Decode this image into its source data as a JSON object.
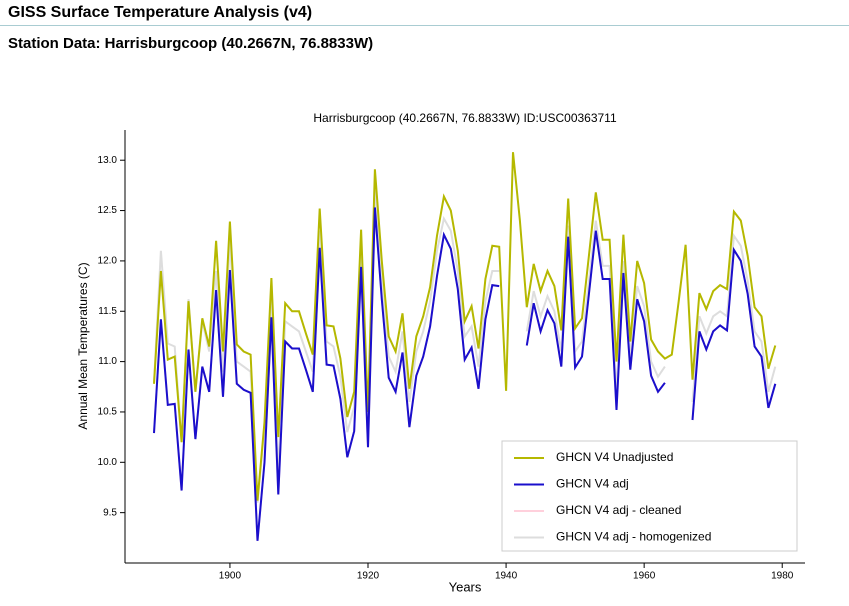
{
  "header": {
    "title": "GISS Surface Temperature Analysis (v4)",
    "subtitle": "Station Data: Harrisburgcoop (40.2667N, 76.8833W)"
  },
  "chart_data": {
    "type": "line",
    "title": "Harrisburgcoop (40.2667N, 76.8833W) ID:USC00363711",
    "xlabel": "Years",
    "ylabel": "Annual Mean Temperatures (C)",
    "xlim": [
      1884.8,
      1983.3
    ],
    "xticks": [
      1900,
      1920,
      1940,
      1960,
      1980
    ],
    "ylim": [
      9.0,
      13.3
    ],
    "yticks": [
      {
        "value": 9.5,
        "label": "9.5"
      },
      {
        "value": 10,
        "label": "10.0"
      },
      10.5,
      {
        "value": 11,
        "label": "11.0"
      },
      11.5,
      {
        "value": 12,
        "label": "12.0"
      },
      12.5,
      {
        "value": 13,
        "label": "13.0"
      }
    ],
    "legend": "lower right",
    "x": [
      1889,
      1890,
      1891,
      1892,
      1893,
      1894,
      1895,
      1896,
      1897,
      1898,
      1899,
      1900,
      1901,
      1902,
      1903,
      1904,
      1905,
      1906,
      1907,
      1908,
      1909,
      1910,
      1911,
      1912,
      1913,
      1914,
      1915,
      1916,
      1917,
      1918,
      1919,
      1920,
      1921,
      1922,
      1923,
      1924,
      1925,
      1926,
      1927,
      1928,
      1929,
      1930,
      1931,
      1932,
      1933,
      1934,
      1935,
      1936,
      1937,
      1938,
      1939,
      1940,
      1941,
      1942,
      1943,
      1944,
      1945,
      1946,
      1947,
      1948,
      1949,
      1950,
      1951,
      1952,
      1953,
      1954,
      1955,
      1956,
      1957,
      1958,
      1959,
      1960,
      1961,
      1962,
      1963,
      1964,
      1965,
      1966,
      1967,
      1968,
      1969,
      1970,
      1971,
      1972,
      1973,
      1974,
      1975,
      1976,
      1977,
      1978,
      1979
    ],
    "series": [
      {
        "name": "GHCN V4 Unadjusted",
        "color": "#b5b800",
        "values": [
          10.78,
          11.9,
          11.02,
          11.05,
          10.2,
          11.6,
          10.7,
          11.43,
          11.15,
          12.2,
          11.1,
          12.39,
          11.17,
          11.1,
          11.07,
          9.62,
          10.4,
          11.83,
          10.25,
          11.58,
          11.5,
          11.5,
          11.28,
          11.07,
          12.52,
          11.36,
          11.35,
          11.03,
          10.45,
          10.7,
          12.31,
          10.5,
          12.91,
          12.0,
          11.25,
          11.1,
          11.48,
          10.73,
          11.25,
          11.45,
          11.74,
          12.25,
          12.64,
          12.5,
          12.1,
          11.4,
          11.55,
          11.13,
          11.82,
          12.15,
          12.14,
          10.71,
          13.08,
          12.4,
          11.54,
          11.97,
          11.7,
          11.9,
          11.75,
          11.31,
          12.62,
          11.33,
          11.43,
          12.05,
          12.68,
          12.21,
          12.21,
          11.0,
          12.26,
          11.2,
          12.0,
          11.78,
          11.22,
          11.1,
          11.03,
          11.07,
          11.6,
          12.16,
          10.82,
          11.68,
          11.52,
          11.7,
          11.76,
          11.72,
          12.49,
          12.4,
          12.05,
          11.54,
          11.45,
          10.93,
          11.16
        ]
      },
      {
        "name": "GHCN V4 adj",
        "color": "#1a0fcc",
        "values": [
          10.29,
          11.42,
          10.57,
          10.58,
          9.72,
          11.12,
          10.23,
          10.95,
          10.7,
          11.71,
          10.65,
          11.91,
          10.78,
          10.72,
          10.69,
          9.22,
          10.0,
          11.44,
          9.68,
          11.2,
          11.13,
          11.13,
          10.92,
          10.7,
          12.13,
          10.97,
          10.96,
          10.63,
          10.05,
          10.31,
          11.94,
          10.15,
          12.53,
          11.62,
          10.84,
          10.7,
          11.09,
          10.35,
          10.86,
          11.05,
          11.35,
          11.85,
          12.26,
          12.12,
          11.72,
          11.02,
          11.14,
          10.73,
          11.42,
          11.76,
          11.75,
          null,
          null,
          null,
          11.16,
          11.58,
          11.3,
          11.51,
          11.38,
          10.95,
          12.24,
          10.94,
          11.05,
          11.67,
          12.3,
          11.82,
          11.82,
          10.52,
          11.88,
          10.92,
          11.62,
          11.4,
          10.86,
          10.7,
          10.79,
          null,
          null,
          null,
          10.42,
          11.3,
          11.12,
          11.3,
          11.36,
          11.31,
          12.11,
          12.0,
          11.67,
          11.15,
          11.05,
          10.54,
          10.78
        ]
      },
      {
        "name": "GHCN V4 adj - cleaned",
        "color": "#ffd0dc",
        "values": [
          10.29,
          11.42,
          10.57,
          10.58,
          9.72,
          11.12,
          10.23,
          10.95,
          10.7,
          11.71,
          10.65,
          11.91,
          10.78,
          10.72,
          10.69,
          9.22,
          10.0,
          11.44,
          9.68,
          11.2,
          11.13,
          11.13,
          10.92,
          10.7,
          12.13,
          10.97,
          10.96,
          10.63,
          10.05,
          10.31,
          11.94,
          10.15,
          12.53,
          11.62,
          10.84,
          10.7,
          11.09,
          10.35,
          10.86,
          11.05,
          11.35,
          11.85,
          12.26,
          12.12,
          11.72,
          11.02,
          11.14,
          10.73,
          11.42,
          11.76,
          11.75,
          null,
          null,
          null,
          11.16,
          11.58,
          11.3,
          11.51,
          11.38,
          10.95,
          12.24,
          10.94,
          11.05,
          11.67,
          12.3,
          11.82,
          11.82,
          10.52,
          11.88,
          10.92,
          11.62,
          11.4,
          10.86,
          10.7,
          10.79,
          null,
          null,
          null,
          10.42,
          11.3,
          11.12,
          11.3,
          11.36,
          11.31,
          12.11,
          12.0,
          11.67,
          11.15,
          11.05,
          10.54,
          10.78
        ]
      },
      {
        "name": "GHCN V4 adj - homogenized",
        "color": "#dddddd",
        "values": [
          10.8,
          12.1,
          11.18,
          11.15,
          10.2,
          11.62,
          10.7,
          11.4,
          11.1,
          11.9,
          10.9,
          12.2,
          11.0,
          10.95,
          10.9,
          9.6,
          10.35,
          11.6,
          9.9,
          11.4,
          11.35,
          11.3,
          11.1,
          10.9,
          12.3,
          11.2,
          11.15,
          10.85,
          10.3,
          10.55,
          12.1,
          10.4,
          12.7,
          11.8,
          11.05,
          10.9,
          11.3,
          10.6,
          11.1,
          11.3,
          11.6,
          12.1,
          12.42,
          12.3,
          11.9,
          11.25,
          11.35,
          10.95,
          11.6,
          11.9,
          11.9,
          null,
          null,
          null,
          11.3,
          11.7,
          11.45,
          11.65,
          11.5,
          11.1,
          12.35,
          11.1,
          11.2,
          11.8,
          12.4,
          11.95,
          11.95,
          10.7,
          12.0,
          11.05,
          11.75,
          11.55,
          11.0,
          10.85,
          10.95,
          null,
          null,
          null,
          10.6,
          11.45,
          11.28,
          11.45,
          11.5,
          11.45,
          12.25,
          12.15,
          11.8,
          11.3,
          11.2,
          10.7,
          10.95
        ]
      }
    ]
  }
}
